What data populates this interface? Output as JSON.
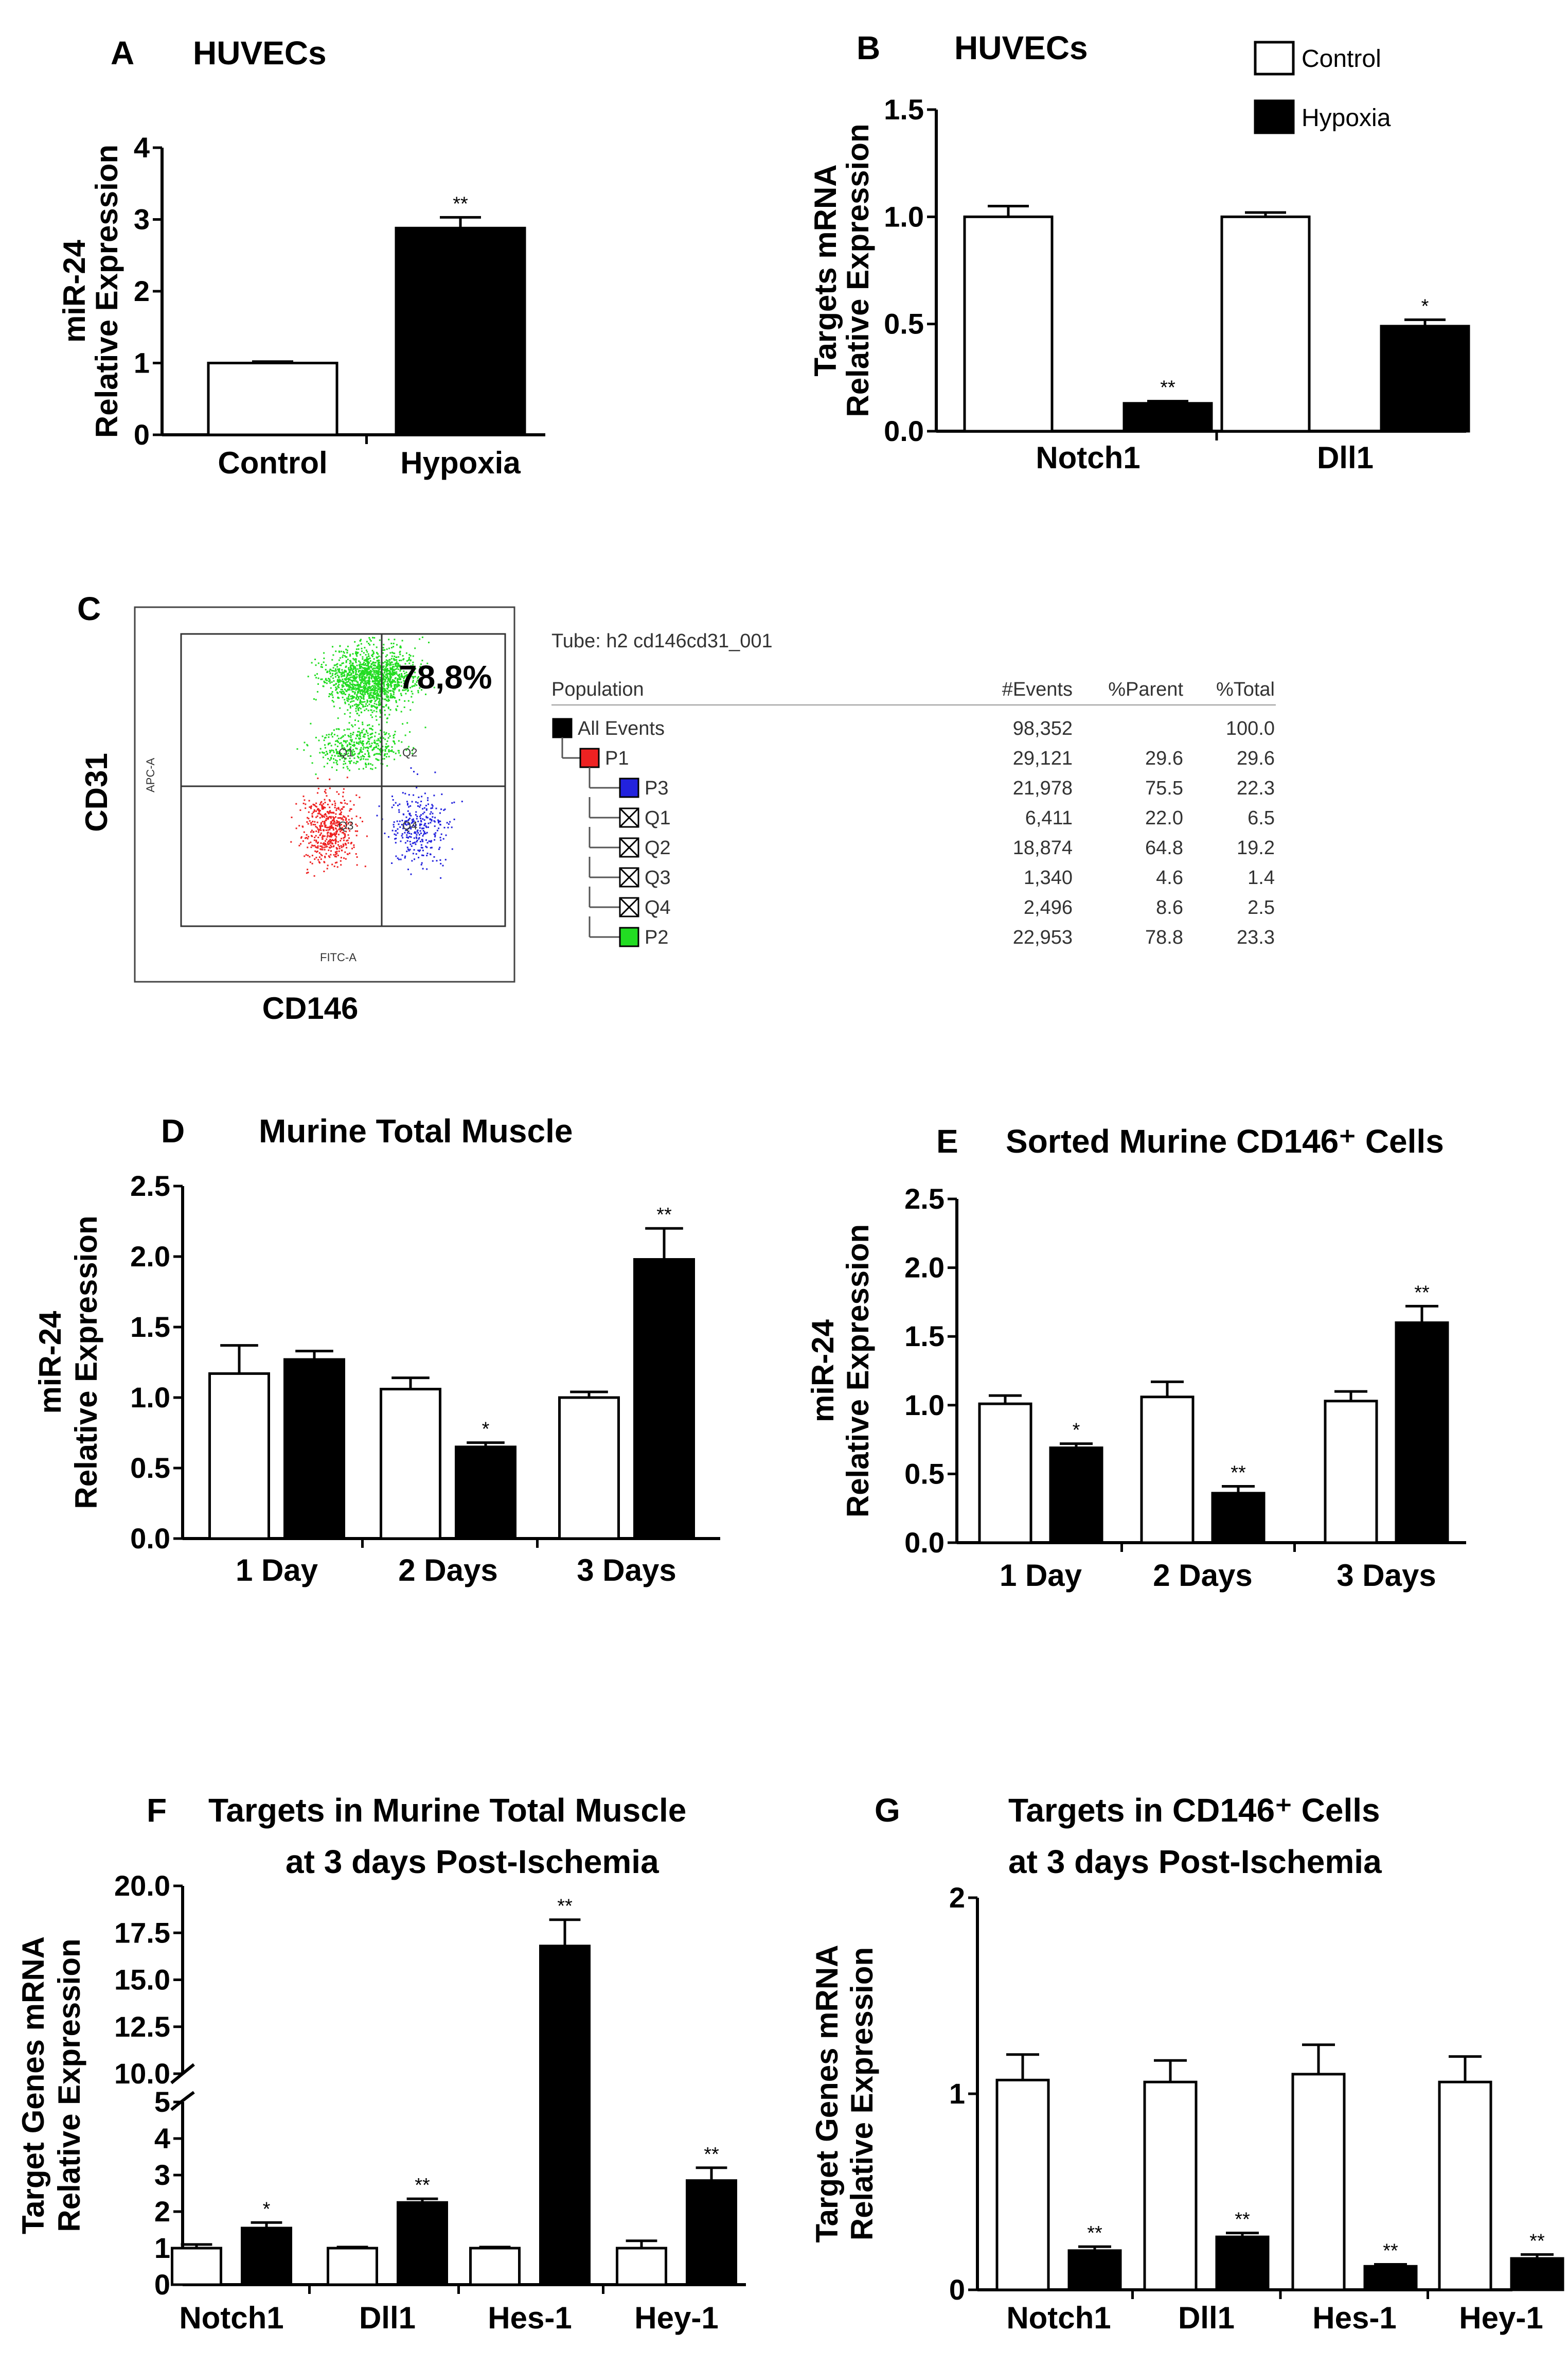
{
  "colors": {
    "control": "#ffffff",
    "hypoxia": "#000000",
    "flow_green": "#22dd22",
    "flow_red": "#ee2222",
    "flow_blue": "#2222dd"
  },
  "legend": {
    "control": "Control",
    "hypoxia": "Hypoxia"
  },
  "chart_data": [
    {
      "id": "A",
      "letter": "A",
      "type": "bar",
      "title": "HUVECs",
      "ylabel": [
        "miR-24",
        "Relative Expression"
      ],
      "ylim": [
        0,
        4
      ],
      "yticks": [
        0,
        1,
        2,
        3,
        4
      ],
      "categories": [
        "Control",
        "Hypoxia"
      ],
      "series": [
        {
          "name": "Control",
          "values": [
            1.0,
            null
          ],
          "errors": [
            0.02,
            null
          ],
          "sig": [
            "",
            ""
          ]
        },
        {
          "name": "Hypoxia",
          "values": [
            null,
            2.88
          ],
          "errors": [
            null,
            0.15
          ],
          "sig": [
            "",
            "**"
          ]
        }
      ]
    },
    {
      "id": "B",
      "letter": "B",
      "type": "bar",
      "title": "HUVECs",
      "ylabel": [
        "Targets mRNA",
        "Relative Expression"
      ],
      "ylim": [
        0,
        1.5
      ],
      "yticks": [
        "0.0",
        "0.5",
        "1.0",
        "1.5"
      ],
      "categories": [
        "Notch1",
        "Dll1"
      ],
      "series": [
        {
          "name": "Control",
          "values": [
            1.0,
            1.0
          ],
          "errors": [
            0.05,
            0.02
          ],
          "sig": [
            "",
            ""
          ]
        },
        {
          "name": "Hypoxia",
          "values": [
            0.13,
            0.49
          ],
          "errors": [
            0.01,
            0.03
          ],
          "sig": [
            "**",
            "*"
          ]
        }
      ]
    },
    {
      "id": "D",
      "letter": "D",
      "type": "bar",
      "title": "Murine Total Muscle",
      "ylabel": [
        "miR-24",
        "Relative Expression"
      ],
      "ylim": [
        0,
        2.5
      ],
      "yticks": [
        "0.0",
        "0.5",
        "1.0",
        "1.5",
        "2.0",
        "2.5"
      ],
      "categories": [
        "1 Day",
        "2 Days",
        "3 Days"
      ],
      "series": [
        {
          "name": "Control",
          "values": [
            1.17,
            1.06,
            1.0
          ],
          "errors": [
            0.2,
            0.08,
            0.04
          ],
          "sig": [
            "",
            "",
            ""
          ]
        },
        {
          "name": "Hypoxia",
          "values": [
            1.27,
            0.65,
            1.98
          ],
          "errors": [
            0.06,
            0.03,
            0.22
          ],
          "sig": [
            "",
            "*",
            "**"
          ]
        }
      ]
    },
    {
      "id": "E",
      "letter": "E",
      "type": "bar",
      "title": "Sorted Murine CD146⁺ Cells",
      "ylabel": [
        "miR-24",
        "Relative Expression"
      ],
      "ylim": [
        0,
        2.5
      ],
      "yticks": [
        "0.0",
        "0.5",
        "1.0",
        "1.5",
        "2.0",
        "2.5"
      ],
      "categories": [
        "1 Day",
        "2 Days",
        "3 Days"
      ],
      "series": [
        {
          "name": "Control",
          "values": [
            1.01,
            1.06,
            1.03
          ],
          "errors": [
            0.06,
            0.11,
            0.07
          ],
          "sig": [
            "",
            "",
            ""
          ]
        },
        {
          "name": "Hypoxia",
          "values": [
            0.69,
            0.36,
            1.6
          ],
          "errors": [
            0.03,
            0.05,
            0.12
          ],
          "sig": [
            "*",
            "**",
            "**"
          ]
        }
      ]
    },
    {
      "id": "F",
      "letter": "F",
      "type": "bar",
      "title": [
        "Targets in Murine Total Muscle",
        "at 3 days Post-Ischemia"
      ],
      "ylabel": [
        "Target Genes mRNA",
        "Relative Expression"
      ],
      "broken_axis": true,
      "ylim_lower": [
        0,
        5
      ],
      "ylim_upper": [
        10,
        20
      ],
      "yticks_lower": [
        0,
        1,
        2,
        3,
        4,
        5
      ],
      "yticks_upper": [
        "10.0",
        "12.5",
        "15.0",
        "17.5",
        "20.0"
      ],
      "categories": [
        "Notch1",
        "Dll1",
        "Hes-1",
        "Hey-1"
      ],
      "series": [
        {
          "name": "Control",
          "values": [
            1.0,
            1.0,
            1.0,
            1.0
          ],
          "errors": [
            0.1,
            0.03,
            0.03,
            0.2
          ],
          "sig": [
            "",
            "",
            "",
            ""
          ]
        },
        {
          "name": "Hypoxia",
          "values": [
            1.55,
            2.25,
            16.8,
            2.85
          ],
          "errors": [
            0.15,
            0.1,
            1.4,
            0.35
          ],
          "sig": [
            "*",
            "**",
            "**",
            "**"
          ]
        }
      ]
    },
    {
      "id": "G",
      "letter": "G",
      "type": "bar",
      "title": [
        "Targets in CD146⁺ Cells",
        "at 3 days Post-Ischemia"
      ],
      "ylabel": [
        "Target Genes mRNA",
        "Relative Expression"
      ],
      "ylim": [
        0,
        2
      ],
      "yticks": [
        0,
        1,
        2
      ],
      "categories": [
        "Notch1",
        "Dll1",
        "Hes-1",
        "Hey-1"
      ],
      "series": [
        {
          "name": "Control",
          "values": [
            1.07,
            1.06,
            1.1,
            1.06
          ],
          "errors": [
            0.13,
            0.11,
            0.15,
            0.13
          ],
          "sig": [
            "",
            "",
            "",
            ""
          ]
        },
        {
          "name": "Hypoxia",
          "values": [
            0.2,
            0.27,
            0.12,
            0.16
          ],
          "errors": [
            0.02,
            0.02,
            0.01,
            0.02
          ],
          "sig": [
            "**",
            "**",
            "**",
            "**"
          ]
        }
      ]
    }
  ],
  "flow": {
    "letter": "C",
    "y_label": "CD31",
    "x_label": "CD146",
    "gate_percent": "78,8%",
    "axis_label_y": "APC-A",
    "axis_label_x": "FITC-A",
    "quadrants": [
      "Q1",
      "Q2",
      "Q3",
      "Q4"
    ],
    "tube": "Tube:   h2 cd146cd31_001",
    "headers": {
      "population": "Population",
      "events": "#Events",
      "parent": "%Parent",
      "total": "%Total"
    },
    "rows": [
      {
        "name": "All Events",
        "events": "98,352",
        "parent": "",
        "total": "100.0",
        "level": 0,
        "marker": "solid",
        "color": "#000000"
      },
      {
        "name": "P1",
        "events": "29,121",
        "parent": "29.6",
        "total": "29.6",
        "level": 1,
        "marker": "solid",
        "color": "#ee2222"
      },
      {
        "name": "P3",
        "events": "21,978",
        "parent": "75.5",
        "total": "22.3",
        "level": 2,
        "marker": "solid",
        "color": "#2222dd"
      },
      {
        "name": "Q1",
        "events": "6,411",
        "parent": "22.0",
        "total": "6.5",
        "level": 2,
        "marker": "cross",
        "color": "#ffffff"
      },
      {
        "name": "Q2",
        "events": "18,874",
        "parent": "64.8",
        "total": "19.2",
        "level": 2,
        "marker": "cross",
        "color": "#ffffff"
      },
      {
        "name": "Q3",
        "events": "1,340",
        "parent": "4.6",
        "total": "1.4",
        "level": 2,
        "marker": "cross",
        "color": "#ffffff"
      },
      {
        "name": "Q4",
        "events": "2,496",
        "parent": "8.6",
        "total": "2.5",
        "level": 2,
        "marker": "cross",
        "color": "#ffffff"
      },
      {
        "name": "P2",
        "events": "22,953",
        "parent": "78.8",
        "total": "23.3",
        "level": 2,
        "marker": "solid",
        "color": "#22dd22"
      }
    ]
  }
}
